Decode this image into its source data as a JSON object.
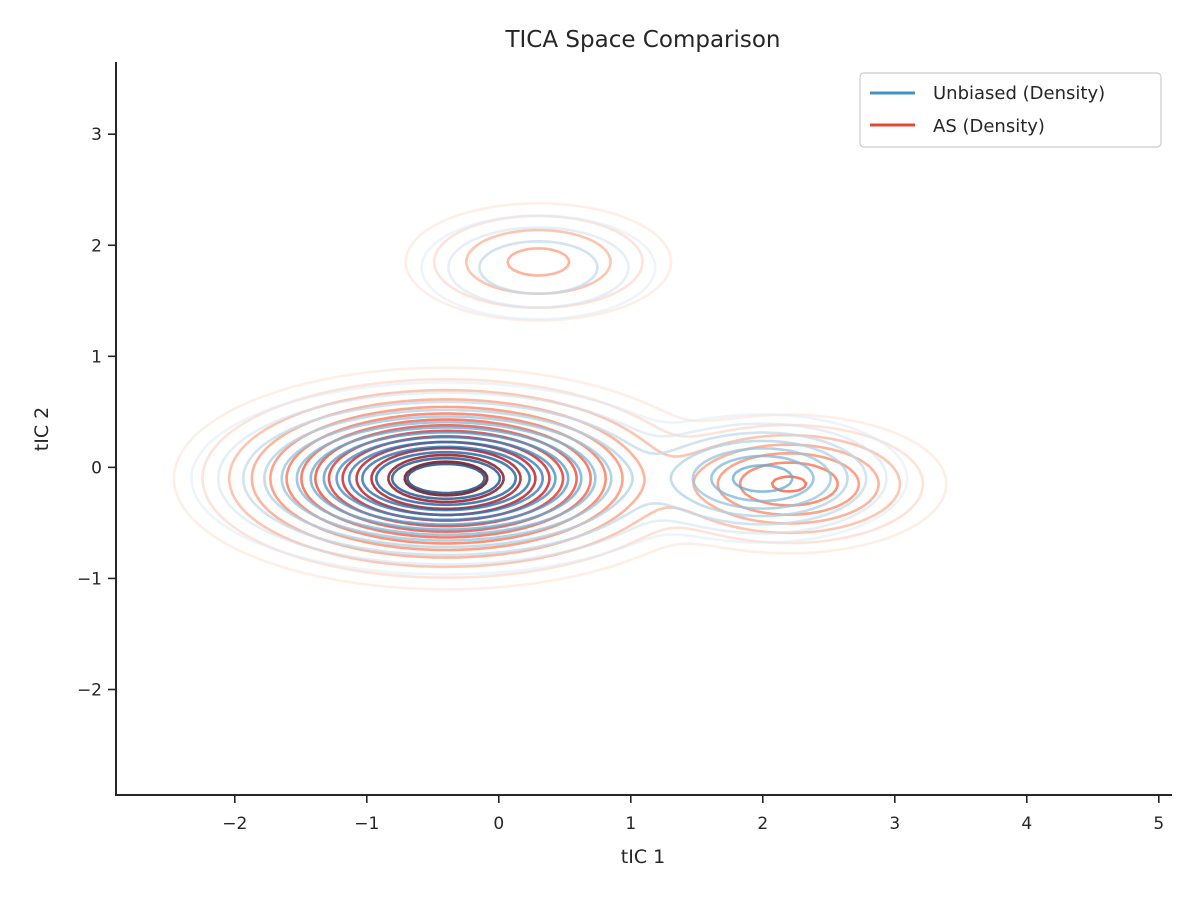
{
  "chart_data": {
    "type": "contour",
    "title": "TICA Space Comparison",
    "xlabel": "tIC 1",
    "ylabel": "tIC 2",
    "xlim": [
      -2.9,
      5.1
    ],
    "ylim": [
      -2.95,
      3.65
    ],
    "xticks": [
      -2,
      -1,
      0,
      1,
      2,
      3,
      4,
      5
    ],
    "yticks": [
      -2,
      -1,
      0,
      1,
      2,
      3
    ],
    "xtick_labels": [
      "−2",
      "−1",
      "0",
      "1",
      "2",
      "3",
      "4",
      "5"
    ],
    "ytick_labels": [
      "−2",
      "−1",
      "0",
      "1",
      "2",
      "3"
    ],
    "grid": false,
    "legend_position": "top-right",
    "series": [
      {
        "name": "Unbiased (Density)",
        "color": "#4292c6",
        "colormap": "Blues",
        "peaks": [
          {
            "x": -0.4,
            "y": -0.1,
            "weight": 1.0
          },
          {
            "x": 2.0,
            "y": -0.1,
            "weight": 0.25
          },
          {
            "x": 0.3,
            "y": 1.8,
            "weight": 0.06
          }
        ]
      },
      {
        "name": "AS (Density)",
        "color": "#e34a33",
        "colormap": "Reds",
        "peaks": [
          {
            "x": -0.4,
            "y": -0.1,
            "weight": 1.0
          },
          {
            "x": 2.2,
            "y": -0.15,
            "weight": 0.22
          },
          {
            "x": 0.3,
            "y": 1.85,
            "weight": 0.07
          }
        ]
      }
    ]
  }
}
